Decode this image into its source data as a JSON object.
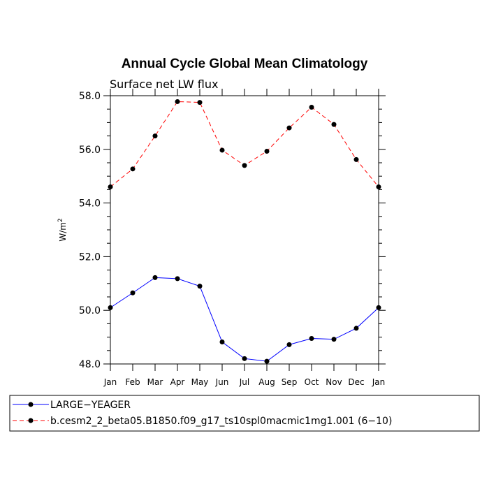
{
  "chart_data": {
    "type": "line",
    "title": "Annual Cycle Global Mean Climatology",
    "subtitle": "Surface net LW flux",
    "xlabel": "",
    "ylabel": "W/m",
    "ylabel_superscript": "2",
    "categories": [
      "Jan",
      "Feb",
      "Mar",
      "Apr",
      "May",
      "Jun",
      "Jul",
      "Aug",
      "Sep",
      "Oct",
      "Nov",
      "Dec",
      "Jan"
    ],
    "ylim": [
      48.0,
      58.0
    ],
    "yticks_major": [
      "48.0",
      "50.0",
      "52.0",
      "54.0",
      "56.0",
      "58.0"
    ],
    "ytick_values": [
      48,
      50,
      52,
      54,
      56,
      58
    ],
    "series": [
      {
        "name": "LARGE−YEAGER",
        "color": "#0000ff",
        "dash": "solid",
        "values": [
          50.1,
          50.65,
          51.22,
          51.18,
          50.9,
          48.82,
          48.2,
          48.1,
          48.72,
          48.95,
          48.92,
          49.33,
          50.1
        ]
      },
      {
        "name": "b.cesm2_2_beta05.B1850.f09_g17_ts10spl0macmic1mg1.001 (6−10)",
        "color": "#ff0000",
        "dash": "dashed",
        "values": [
          54.6,
          55.27,
          56.5,
          57.78,
          57.75,
          55.97,
          55.4,
          55.93,
          56.8,
          57.57,
          56.93,
          55.62,
          54.6
        ]
      }
    ],
    "legend_position": "bottom"
  }
}
